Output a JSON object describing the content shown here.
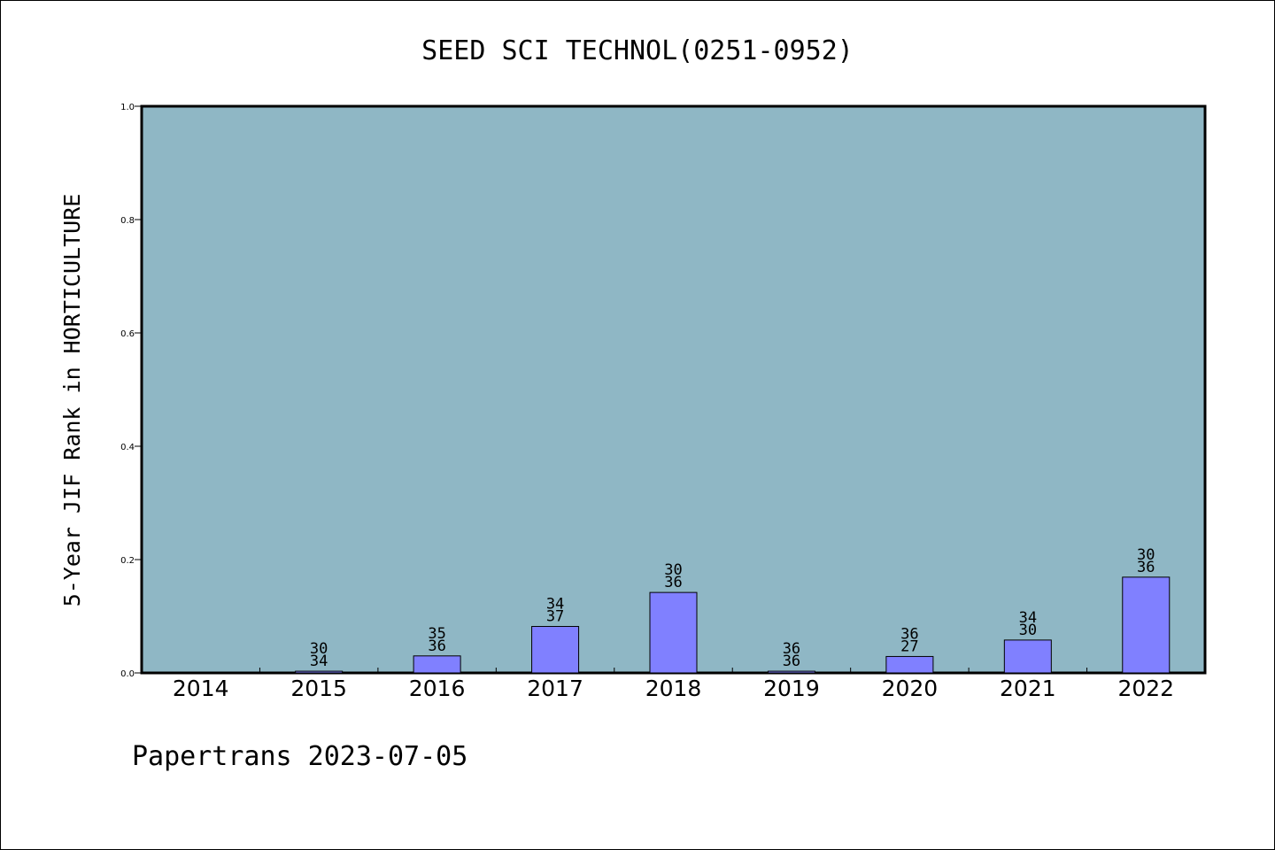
{
  "chart_data": {
    "type": "bar",
    "title": "SEED SCI TECHNOL(0251-0952)",
    "xlabel": "",
    "ylabel": "5-Year JIF Rank in HORTICULTURE",
    "ylim": [
      0,
      1.0
    ],
    "yticks": [
      "0.0",
      "0.2",
      "0.4",
      "0.6",
      "0.8",
      "1.0"
    ],
    "categories": [
      "2014",
      "2015",
      "2016",
      "2017",
      "2018",
      "2019",
      "2020",
      "2021",
      "2022"
    ],
    "values": [
      0,
      0.003,
      0.03,
      0.082,
      0.142,
      0.003,
      0.029,
      0.058,
      0.169
    ],
    "labels_top": [
      "",
      "30",
      "35",
      "34",
      "30",
      "36",
      "36",
      "34",
      "30"
    ],
    "labels_bottom": [
      "",
      "34",
      "36",
      "37",
      "36",
      "36",
      "27",
      "30",
      "36"
    ],
    "grid": false,
    "colors": {
      "plot_bg": "#8fb7c5",
      "bar": "#8080ff",
      "bar_edge": "#000000"
    }
  },
  "footer": {
    "text": "Papertrans 2023-07-05"
  }
}
